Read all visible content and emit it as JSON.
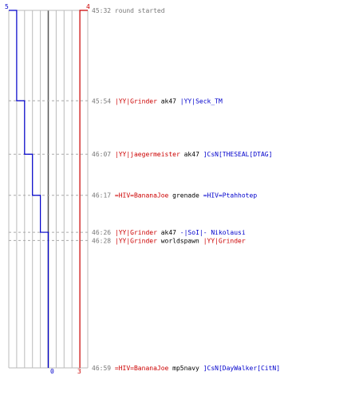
{
  "chart_data": {
    "type": "line",
    "title": "",
    "colors": {
      "blue": "#0000cc",
      "red": "#cc0000",
      "grid": "#bbbbbb",
      "text": "#000000",
      "time": "#777777"
    },
    "blue_axis_labels": {
      "top": "5",
      "bottom": "0"
    },
    "red_axis_labels": {
      "top": "4",
      "bottom": "3"
    },
    "grid_lines": {
      "count": 10,
      "highlight_index": 5
    },
    "series": [
      {
        "team": "blue",
        "color": "#0000cc",
        "steps": [
          {
            "time": "45:32",
            "value": 5
          },
          {
            "time": "45:54",
            "value": 4
          },
          {
            "time": "46:07",
            "value": 3
          },
          {
            "time": "46:17",
            "value": 2
          },
          {
            "time": "46:26",
            "value": 1
          },
          {
            "time": "46:59",
            "value": 0
          }
        ]
      },
      {
        "team": "red",
        "color": "#cc0000",
        "steps": [
          {
            "time": "45:32",
            "value": 4
          },
          {
            "time": "46:28",
            "value": 3
          },
          {
            "time": "46:59",
            "value": 3
          }
        ]
      }
    ],
    "events": [
      {
        "time": "45:32",
        "parts": [
          {
            "text": "round started",
            "color": "#777777"
          }
        ]
      },
      {
        "time": "45:54",
        "parts": [
          {
            "text": "|YY|Grinder",
            "color": "#cc0000"
          },
          {
            "text": " ak47 ",
            "color": "#000000"
          },
          {
            "text": "|YY|Seck_TM",
            "color": "#0000cc"
          }
        ]
      },
      {
        "time": "46:07",
        "parts": [
          {
            "text": "|YY|jaegermeister",
            "color": "#cc0000"
          },
          {
            "text": " ak47 ",
            "color": "#000000"
          },
          {
            "text": "]CsN[THESEAL[DTAG]",
            "color": "#0000cc"
          }
        ]
      },
      {
        "time": "46:17",
        "parts": [
          {
            "text": "=HIV=BananaJoe",
            "color": "#cc0000"
          },
          {
            "text": " grenade ",
            "color": "#000000"
          },
          {
            "text": "=HIV=Ptahhotep",
            "color": "#0000cc"
          }
        ]
      },
      {
        "time": "46:26",
        "parts": [
          {
            "text": "|YY|Grinder",
            "color": "#cc0000"
          },
          {
            "text": " ak47 ",
            "color": "#000000"
          },
          {
            "text": "-|SoI|- Nikolausi",
            "color": "#0000cc"
          }
        ]
      },
      {
        "time": "46:28",
        "parts": [
          {
            "text": "|YY|Grinder",
            "color": "#cc0000"
          },
          {
            "text": " worldspawn ",
            "color": "#000000"
          },
          {
            "text": "|YY|Grinder",
            "color": "#cc0000"
          }
        ]
      },
      {
        "time": "46:59",
        "parts": [
          {
            "text": "=HIV=BananaJoe",
            "color": "#cc0000"
          },
          {
            "text": " mp5navy ",
            "color": "#000000"
          },
          {
            "text": "]CsN[DayWalker[CitN]",
            "color": "#0000cc"
          }
        ]
      }
    ]
  }
}
